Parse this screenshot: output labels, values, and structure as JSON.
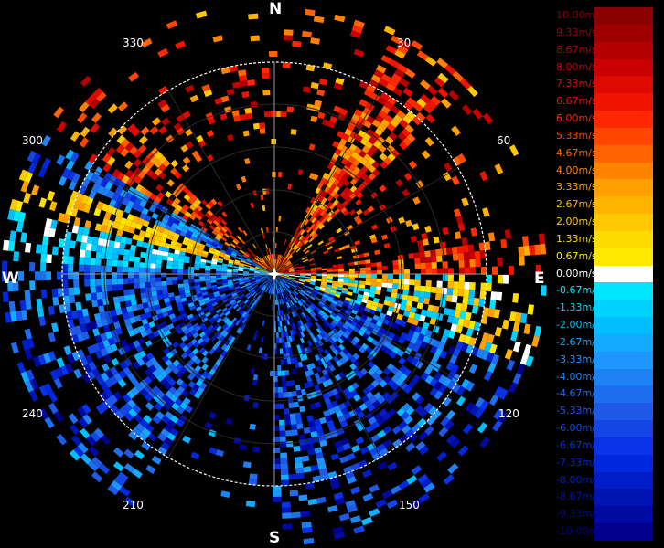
{
  "compass": {
    "north": "N",
    "south": "S",
    "east": "E",
    "west": "W"
  },
  "bearings": [
    "30",
    "60",
    "120",
    "150",
    "210",
    "240",
    "300",
    "330"
  ],
  "colors": {
    "background": "#000000",
    "ring": "#2a2a2a",
    "outer_ring": "#ffffff"
  },
  "legend": [
    {
      "label": "10.00m/s",
      "color": "#8b0000"
    },
    {
      "label": "9.33m/s",
      "color": "#9e0000"
    },
    {
      "label": "8.67m/s",
      "color": "#b40000"
    },
    {
      "label": "8.00m/s",
      "color": "#c80000"
    },
    {
      "label": "7.33m/s",
      "color": "#dc0a00"
    },
    {
      "label": "6.67m/s",
      "color": "#f01400"
    },
    {
      "label": "6.00m/s",
      "color": "#ff2800"
    },
    {
      "label": "5.33m/s",
      "color": "#ff4600"
    },
    {
      "label": "4.67m/s",
      "color": "#ff6400"
    },
    {
      "label": "4.00m/s",
      "color": "#ff8200"
    },
    {
      "label": "3.33m/s",
      "color": "#ffa000"
    },
    {
      "label": "2.67m/s",
      "color": "#ffb400"
    },
    {
      "label": "2.00m/s",
      "color": "#ffc800"
    },
    {
      "label": "1.33m/s",
      "color": "#ffdc00"
    },
    {
      "label": "0.67m/s",
      "color": "#ffe800"
    },
    {
      "label": "0.00m/s",
      "color": "#ffffff"
    },
    {
      "label": "-0.67m/s",
      "color": "#00e6ff"
    },
    {
      "label": "-1.33m/s",
      "color": "#00d2ff"
    },
    {
      "label": "-2.00m/s",
      "color": "#00beff"
    },
    {
      "label": "-2.67m/s",
      "color": "#14aaff"
    },
    {
      "label": "-3.33m/s",
      "color": "#1e96ff"
    },
    {
      "label": "-4.00m/s",
      "color": "#1e82f5"
    },
    {
      "label": "-4.67m/s",
      "color": "#1e6ef0"
    },
    {
      "label": "-5.33m/s",
      "color": "#1e5ae6"
    },
    {
      "label": "-6.00m/s",
      "color": "#1446e6"
    },
    {
      "label": "-6.67m/s",
      "color": "#0a32e6"
    },
    {
      "label": "-7.33m/s",
      "color": "#0028dc"
    },
    {
      "label": "-8.00m/s",
      "color": "#001ec8"
    },
    {
      "label": "-8.67m/s",
      "color": "#0014b4"
    },
    {
      "label": "-9.33m/s",
      "color": "#000aa0"
    },
    {
      "label": "-10.00m/s",
      "color": "#00008c"
    }
  ]
}
